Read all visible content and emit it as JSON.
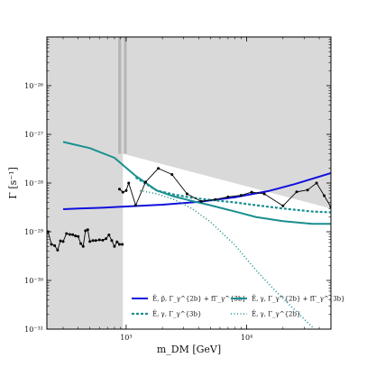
{
  "chart_data": {
    "type": "line",
    "xlabel": "m_DM [GeV]",
    "ylabel": "Γ [s⁻¹]",
    "xscale": "log",
    "yscale": "log",
    "xlim": [
      220,
      50000
    ],
    "ylim": [
      1e-31,
      1e-25
    ],
    "x_ticks": [
      {
        "value": 1000,
        "label": "10³"
      },
      {
        "value": 10000,
        "label": "10⁴"
      }
    ],
    "y_ticks": [
      {
        "value": 1e-26,
        "label": "10⁻²⁶"
      },
      {
        "value": 1e-27,
        "label": "10⁻²⁷"
      },
      {
        "value": 1e-28,
        "label": "10⁻²⁸"
      },
      {
        "value": 1e-29,
        "label": "10⁻²⁹"
      },
      {
        "value": 1e-30,
        "label": "10⁻³⁰"
      },
      {
        "value": 1e-31,
        "label": "10⁻³¹"
      }
    ],
    "excluded_region": {
      "color": "#d9d9d9",
      "x": [
        220,
        940,
        940,
        50000
      ],
      "upper": [
        1e-25,
        1e-25,
        1e-25,
        1e-25
      ],
      "lower": [
        1e-31,
        1e-31,
        4e-28,
        3e-29
      ]
    },
    "vertical_bands": [
      {
        "x": [
          860,
          910
        ],
        "color": "#b5b5b5"
      },
      {
        "x": [
          960,
          1010
        ],
        "color": "#b5b5b5"
      }
    ],
    "series": [
      {
        "name": "Ẽ, p̄, Γ_γ^{2b} + fΓ_γ^{3b}",
        "color": "#1010dd",
        "style": "solid",
        "x": [
          300,
          400,
          600,
          1000,
          2000,
          4000,
          8000,
          15000,
          25000,
          50000
        ],
        "y": [
          2.9e-29,
          3e-29,
          3.1e-29,
          3.3e-29,
          3.6e-29,
          4.1e-29,
          5.1e-29,
          6.8e-29,
          9.5e-29,
          1.6e-28
        ]
      },
      {
        "name": "Ẽ, γ, Γ_γ^{2b} + fΓ_γ^{3b}",
        "color": "#1a8f8f",
        "style": "solid",
        "x": [
          300,
          500,
          800,
          1200,
          1800,
          2500,
          3500,
          5000,
          8000,
          12000,
          20000,
          35000,
          50000
        ],
        "y": [
          7e-28,
          5.2e-28,
          3.3e-28,
          1.4e-28,
          7e-29,
          5.3e-29,
          4.3e-29,
          3.5e-29,
          2.6e-29,
          2e-29,
          1.65e-29,
          1.45e-29,
          1.45e-29
        ]
      },
      {
        "name": "Ẽ, γ, Γ_γ^{3b}",
        "color": "#1a8f8f",
        "style": "dashed",
        "x": [
          1200,
          1800,
          2500,
          3500,
          5000,
          8000,
          12000,
          20000,
          35000,
          50000
        ],
        "y": [
          1.3e-28,
          7e-29,
          5.8e-29,
          5e-29,
          4.5e-29,
          4e-29,
          3.5e-29,
          3e-29,
          2.6e-29,
          2.5e-29
        ]
      },
      {
        "name": "Ẽ, γ, Γ_γ^{2b}",
        "color": "#1a8f8f",
        "style": "dotted",
        "x": [
          1300,
          1800,
          2500,
          3500,
          5000,
          8000,
          12000,
          18000,
          25000,
          35000,
          50000
        ],
        "y": [
          7e-29,
          6e-29,
          4.6e-29,
          3e-29,
          1.6e-29,
          5.3e-30,
          1.6e-30,
          5.5e-31,
          2.5e-31,
          1.1e-31,
          2e-32
        ]
      },
      {
        "name": "",
        "color": "#000000",
        "style": "markers-line",
        "x": [
          225,
          240,
          255,
          270,
          285,
          300,
          320,
          340,
          360,
          380,
          400,
          420,
          440,
          460,
          480,
          500,
          530,
          560,
          600,
          640,
          680,
          720,
          760,
          800,
          840,
          880,
          930
        ],
        "y": [
          1e-29,
          5.5e-30,
          5.2e-30,
          4.2e-30,
          6.5e-30,
          6.3e-30,
          9.2e-30,
          8.8e-30,
          8.7e-30,
          8.2e-30,
          8e-30,
          5.7e-30,
          5e-30,
          1.05e-29,
          1.1e-29,
          6.3e-30,
          6.6e-30,
          6.6e-30,
          6.8e-30,
          6.7e-30,
          7.2e-30,
          8.6e-30,
          6.6e-30,
          5e-30,
          6.2e-30,
          5.5e-30,
          5.5e-30
        ]
      },
      {
        "name": "",
        "color": "#000000",
        "style": "markers-line",
        "x": [
          880,
          940,
          1000,
          1050,
          1200,
          1450,
          1850,
          2400,
          3200,
          4200,
          5500,
          7000,
          9000,
          11000,
          14000,
          20000,
          26000,
          32000,
          38000,
          44000,
          50000
        ],
        "y": [
          7.5e-29,
          6.5e-29,
          7e-29,
          1e-28,
          3.5e-29,
          1.05e-28,
          2e-28,
          1.5e-28,
          6e-29,
          4.2e-29,
          4.6e-29,
          5.2e-29,
          5.6e-29,
          6.5e-29,
          6e-29,
          3.4e-29,
          6.6e-29,
          7.2e-29,
          1e-28,
          5.5e-29,
          3.2e-29
        ]
      }
    ]
  }
}
